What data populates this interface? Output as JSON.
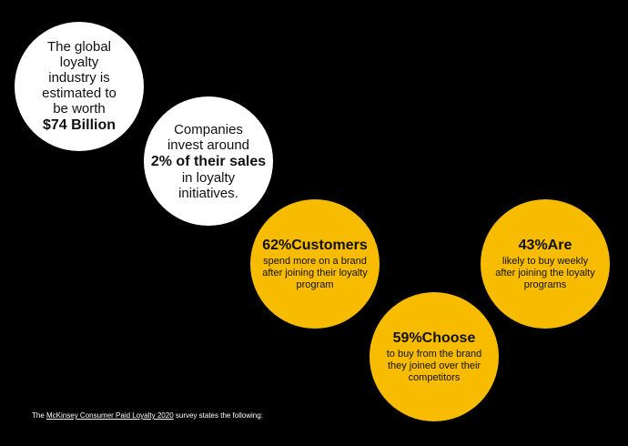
{
  "stats": [
    {
      "id": "c1",
      "lead": "The global loyalty industry is estimated to be worth",
      "highlight": "$74 Billion",
      "trail": ""
    },
    {
      "id": "c2",
      "lead": "Companies invest around",
      "highlight": "2% of their sales",
      "trail": "in loyalty initiatives."
    },
    {
      "id": "c3",
      "headline": "62%Customers",
      "detail": "spend more on a brand after joining their loyalty program"
    },
    {
      "id": "c4",
      "headline": "59%Choose",
      "detail": "to buy from the brand they joined over their competitors"
    },
    {
      "id": "c5",
      "headline": "43%Are",
      "detail": "likely to buy weekly after joining the loyalty programs"
    }
  ],
  "footer": {
    "prefix": "The ",
    "source": "McKinsey Consumer Paid Loyalty 2020",
    "suffix": " survey states the following:"
  },
  "colors": {
    "background": "#000000",
    "white_circle": "#ffffff",
    "yellow_circle": "#f7bc00"
  }
}
